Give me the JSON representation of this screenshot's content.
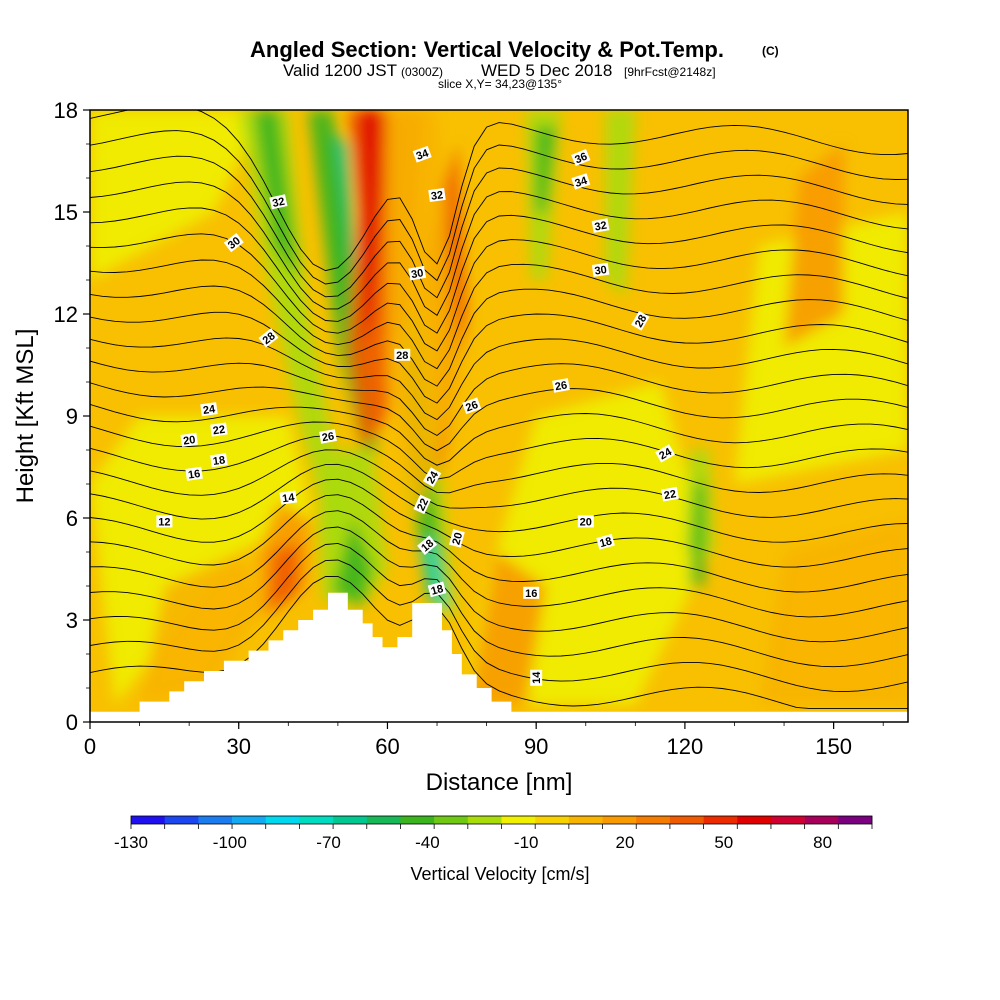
{
  "header": {
    "title": "Angled Section: Vertical Velocity & Pot.Temp.",
    "title_unit": "(C)",
    "valid_prefix": "Valid 1200 JST",
    "valid_utc": "(0300Z)",
    "valid_date": "WED 5 Dec 2018",
    "valid_fcst": "[9hrFcst@2148z]",
    "slice": "slice X,Y= 34,23@135°"
  },
  "chart_data": {
    "type": "heatmap",
    "xlabel": "Distance [nm]",
    "ylabel": "Height [Kft MSL]",
    "xlim": [
      0,
      165
    ],
    "ylim": [
      0,
      18
    ],
    "x_ticks": [
      0,
      30,
      60,
      90,
      120,
      150
    ],
    "y_ticks": [
      0,
      3,
      6,
      9,
      12,
      15,
      18
    ],
    "colorbar": {
      "label": "Vertical Velocity [cm/s]",
      "min": -130,
      "max": 95,
      "step": 15,
      "tick_values": [
        -130,
        -100,
        -70,
        -40,
        -10,
        20,
        50,
        80
      ],
      "colors": [
        "#1e10f0",
        "#1c46f0",
        "#1b7cf0",
        "#12aaf0",
        "#00d8f0",
        "#00dcc0",
        "#00c890",
        "#18b858",
        "#3cb41e",
        "#6ec814",
        "#a8dc0a",
        "#f0f000",
        "#f8d200",
        "#f8b400",
        "#f89a00",
        "#f47c00",
        "#f05a00",
        "#ec2c00",
        "#e00000",
        "#d00030",
        "#a8005a",
        "#7a0080"
      ]
    },
    "terrain_profile": [
      [
        0,
        0.3
      ],
      [
        10,
        0.3
      ],
      [
        10,
        0.6
      ],
      [
        16,
        0.6
      ],
      [
        16,
        0.9
      ],
      [
        19,
        0.9
      ],
      [
        19,
        1.2
      ],
      [
        23,
        1.2
      ],
      [
        23,
        1.5
      ],
      [
        27,
        1.5
      ],
      [
        27,
        1.8
      ],
      [
        32,
        1.8
      ],
      [
        32,
        2.1
      ],
      [
        36,
        2.1
      ],
      [
        36,
        2.4
      ],
      [
        39,
        2.4
      ],
      [
        39,
        2.7
      ],
      [
        42,
        2.7
      ],
      [
        42,
        3.0
      ],
      [
        45,
        3.0
      ],
      [
        45,
        3.3
      ],
      [
        48,
        3.3
      ],
      [
        48,
        3.8
      ],
      [
        52,
        3.8
      ],
      [
        52,
        3.3
      ],
      [
        55,
        3.3
      ],
      [
        55,
        2.9
      ],
      [
        57,
        2.9
      ],
      [
        57,
        2.5
      ],
      [
        59,
        2.5
      ],
      [
        59,
        2.2
      ],
      [
        62,
        2.2
      ],
      [
        62,
        2.5
      ],
      [
        65,
        2.5
      ],
      [
        65,
        3.5
      ],
      [
        71,
        3.5
      ],
      [
        71,
        2.7
      ],
      [
        73,
        2.7
      ],
      [
        73,
        2.0
      ],
      [
        75,
        2.0
      ],
      [
        75,
        1.4
      ],
      [
        78,
        1.4
      ],
      [
        78,
        1.0
      ],
      [
        81,
        1.0
      ],
      [
        81,
        0.6
      ],
      [
        85,
        0.6
      ],
      [
        85,
        0.3
      ],
      [
        165,
        0.3
      ]
    ],
    "contour_labels": [
      {
        "x": 15,
        "y": 5.9,
        "text": "12",
        "rot": 0
      },
      {
        "x": 40,
        "y": 6.6,
        "text": "14",
        "rot": -8
      },
      {
        "x": 21,
        "y": 7.3,
        "text": "16",
        "rot": -8
      },
      {
        "x": 26,
        "y": 7.7,
        "text": "18",
        "rot": -8
      },
      {
        "x": 20,
        "y": 8.3,
        "text": "20",
        "rot": -8
      },
      {
        "x": 26,
        "y": 8.6,
        "text": "22",
        "rot": -8
      },
      {
        "x": 24,
        "y": 9.2,
        "text": "24",
        "rot": -8
      },
      {
        "x": 48,
        "y": 8.4,
        "text": "26",
        "rot": -10
      },
      {
        "x": 36,
        "y": 11.3,
        "text": "28",
        "rot": -38
      },
      {
        "x": 29,
        "y": 14.1,
        "text": "30",
        "rot": -38
      },
      {
        "x": 38,
        "y": 15.3,
        "text": "32",
        "rot": -12
      },
      {
        "x": 63,
        "y": 10.8,
        "text": "28",
        "rot": 0
      },
      {
        "x": 69,
        "y": 7.2,
        "text": "24",
        "rot": -60
      },
      {
        "x": 67,
        "y": 6.4,
        "text": "22",
        "rot": -65
      },
      {
        "x": 68,
        "y": 5.2,
        "text": "18",
        "rot": -40
      },
      {
        "x": 74,
        "y": 5.4,
        "text": "20",
        "rot": -75
      },
      {
        "x": 70,
        "y": 3.9,
        "text": "18",
        "rot": -15
      },
      {
        "x": 77,
        "y": 9.3,
        "text": "26",
        "rot": -20
      },
      {
        "x": 66,
        "y": 13.2,
        "text": "30",
        "rot": -10
      },
      {
        "x": 70,
        "y": 15.5,
        "text": "32",
        "rot": -8
      },
      {
        "x": 67,
        "y": 16.7,
        "text": "34",
        "rot": -20
      },
      {
        "x": 99,
        "y": 16.6,
        "text": "36",
        "rot": -22
      },
      {
        "x": 99,
        "y": 15.9,
        "text": "34",
        "rot": -18
      },
      {
        "x": 103,
        "y": 14.6,
        "text": "32",
        "rot": -10
      },
      {
        "x": 103,
        "y": 13.3,
        "text": "30",
        "rot": -8
      },
      {
        "x": 111,
        "y": 11.8,
        "text": "28",
        "rot": -60
      },
      {
        "x": 95,
        "y": 9.9,
        "text": "26",
        "rot": -10
      },
      {
        "x": 116,
        "y": 7.9,
        "text": "24",
        "rot": -30
      },
      {
        "x": 117,
        "y": 6.7,
        "text": "22",
        "rot": -10
      },
      {
        "x": 100,
        "y": 5.9,
        "text": "20",
        "rot": 0
      },
      {
        "x": 104,
        "y": 5.3,
        "text": "18",
        "rot": -15
      },
      {
        "x": 89,
        "y": 3.8,
        "text": "16",
        "rot": 0
      },
      {
        "x": 90,
        "y": 1.3,
        "text": "14",
        "rot": -90
      }
    ]
  }
}
